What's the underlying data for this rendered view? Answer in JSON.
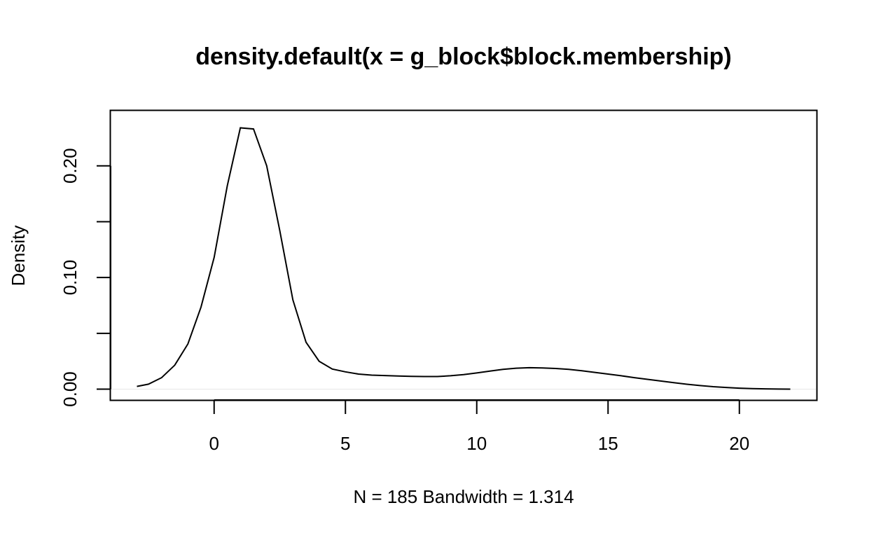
{
  "chart_data": {
    "type": "line",
    "title": "density.default(x = g_block$block.membership)",
    "xlabel": "N = 185   Bandwidth = 1.314",
    "ylabel": "Density",
    "xlim": [
      -3.94,
      22.94
    ],
    "ylim": [
      -0.0097,
      0.2494
    ],
    "x_ticks": [
      0,
      5,
      10,
      15,
      20
    ],
    "x_tick_labels": [
      "0",
      "5",
      "10",
      "15",
      "20"
    ],
    "y_ticks": [
      0.0,
      0.05,
      0.1,
      0.15,
      0.2
    ],
    "y_tick_labels": [
      "0.00",
      "",
      "0.10",
      "",
      "0.20"
    ],
    "grid": false,
    "baseline": 0,
    "series": [
      {
        "x": [
          -2.94,
          -2.5,
          -2.0,
          -1.5,
          -1.0,
          -0.5,
          0.0,
          0.5,
          1.0,
          1.5,
          2.0,
          2.5,
          3.0,
          3.5,
          4.0,
          4.5,
          5.0,
          5.5,
          6.0,
          6.5,
          7.0,
          7.5,
          8.0,
          8.5,
          9.0,
          9.5,
          10.0,
          10.5,
          11.0,
          11.5,
          12.0,
          12.5,
          13.0,
          13.5,
          14.0,
          14.5,
          15.0,
          15.5,
          16.0,
          16.5,
          17.0,
          17.5,
          18.0,
          18.5,
          19.0,
          19.5,
          20.0,
          20.5,
          21.0,
          21.5,
          21.94
        ],
        "y": [
          0.0025,
          0.0045,
          0.0103,
          0.0215,
          0.0405,
          0.0735,
          0.118,
          0.182,
          0.234,
          0.233,
          0.2,
          0.142,
          0.08,
          0.042,
          0.025,
          0.018,
          0.0155,
          0.0135,
          0.0126,
          0.0122,
          0.0118,
          0.0115,
          0.0113,
          0.0113,
          0.012,
          0.013,
          0.0145,
          0.0162,
          0.0178,
          0.0188,
          0.0192,
          0.019,
          0.0185,
          0.0177,
          0.0165,
          0.015,
          0.0135,
          0.012,
          0.0103,
          0.0088,
          0.0073,
          0.0058,
          0.0044,
          0.0032,
          0.0022,
          0.0015,
          0.0009,
          0.0005,
          0.0003,
          0.0001,
          0.0
        ]
      }
    ]
  }
}
